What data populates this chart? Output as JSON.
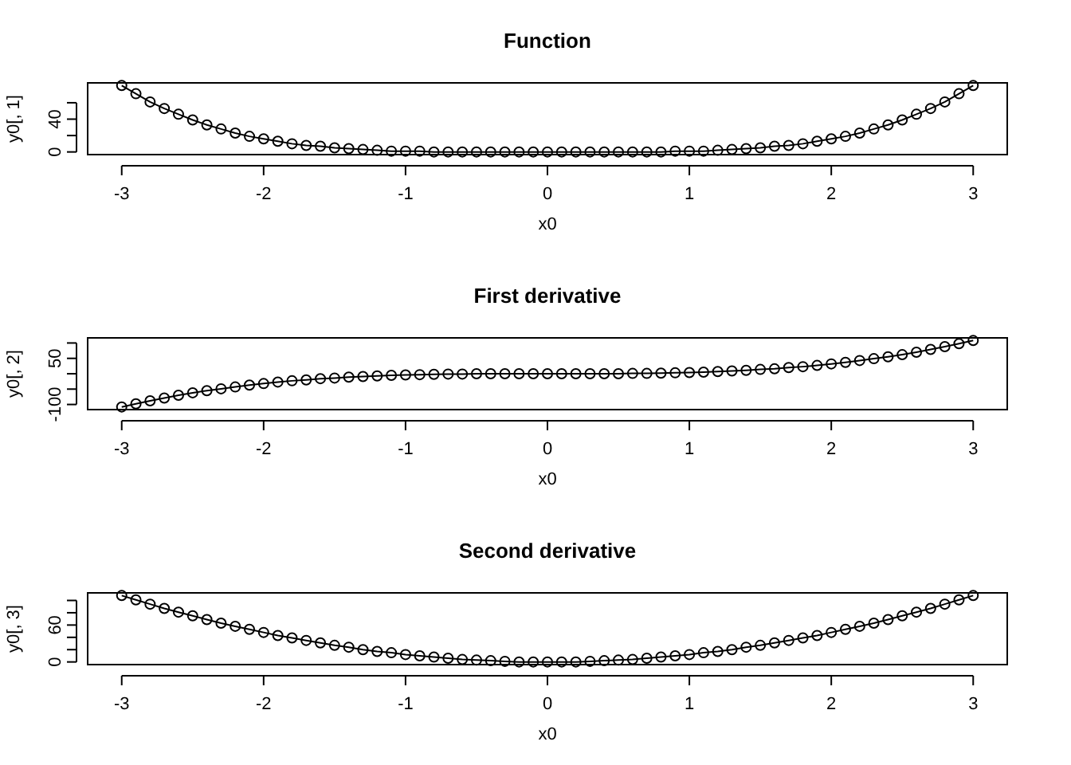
{
  "chart_data": [
    {
      "type": "line",
      "title": "Function",
      "xlabel": "x0",
      "ylabel": "y0[, 1]",
      "marker": "circle",
      "line_style": "solid",
      "xlim": [
        -3.24,
        3.24
      ],
      "xticks": [
        -3,
        -2,
        -1,
        0,
        1,
        2,
        3
      ],
      "ylim": [
        -3.24,
        84.24
      ],
      "yticks": [
        0,
        {
          "value": 20,
          "label": null
        },
        40,
        {
          "value": 60,
          "label": null
        }
      ],
      "x": [
        -3,
        -2.9,
        -2.8,
        -2.7,
        -2.6,
        -2.5,
        -2.4,
        -2.3,
        -2.2,
        -2.1,
        -2,
        -1.9,
        -1.8,
        -1.7,
        -1.6,
        -1.5,
        -1.4,
        -1.3,
        -1.2,
        -1.1,
        -1,
        -0.9,
        -0.8,
        -0.7,
        -0.6,
        -0.5,
        -0.4,
        -0.3,
        -0.2,
        -0.1,
        0,
        0.1,
        0.2,
        0.3,
        0.4,
        0.5,
        0.6,
        0.7,
        0.8,
        0.9,
        1,
        1.1,
        1.2,
        1.3,
        1.4,
        1.5,
        1.6,
        1.7,
        1.8,
        1.9,
        2,
        2.1,
        2.2,
        2.3,
        2.4,
        2.5,
        2.6,
        2.7,
        2.8,
        2.9,
        3
      ],
      "series": [
        {
          "color": "#000000",
          "values": [
            81,
            71,
            61,
            53,
            46,
            39,
            33,
            28,
            23,
            19,
            16,
            13,
            10,
            8,
            7,
            5,
            4,
            3,
            2,
            1,
            1,
            1,
            0,
            0,
            0,
            0,
            0,
            0,
            0,
            0,
            0,
            0,
            0,
            0,
            0,
            0,
            0,
            0,
            0,
            1,
            1,
            1,
            2,
            3,
            4,
            5,
            7,
            8,
            10,
            13,
            16,
            19,
            23,
            28,
            33,
            39,
            46,
            53,
            61,
            71,
            81
          ]
        }
      ]
    },
    {
      "type": "line",
      "title": "First derivative",
      "xlabel": "x0",
      "ylabel": "y0[, 2]",
      "marker": "circle",
      "line_style": "solid",
      "xlim": [
        -3.24,
        3.24
      ],
      "xticks": [
        -3,
        -2,
        -1,
        0,
        1,
        2,
        3
      ],
      "ylim": [
        -116.64,
        116.64
      ],
      "yticks": [
        -100,
        {
          "value": -50,
          "label": null
        },
        {
          "value": 0,
          "label": null
        },
        50,
        {
          "value": 100,
          "label": null
        }
      ],
      "x": [
        -3,
        -2.9,
        -2.8,
        -2.7,
        -2.6,
        -2.5,
        -2.4,
        -2.3,
        -2.2,
        -2.1,
        -2,
        -1.9,
        -1.8,
        -1.7,
        -1.6,
        -1.5,
        -1.4,
        -1.3,
        -1.2,
        -1.1,
        -1,
        -0.9,
        -0.8,
        -0.7,
        -0.6,
        -0.5,
        -0.4,
        -0.3,
        -0.2,
        -0.1,
        0,
        0.1,
        0.2,
        0.3,
        0.4,
        0.5,
        0.6,
        0.7,
        0.8,
        0.9,
        1,
        1.1,
        1.2,
        1.3,
        1.4,
        1.5,
        1.6,
        1.7,
        1.8,
        1.9,
        2,
        2.1,
        2.2,
        2.3,
        2.4,
        2.5,
        2.6,
        2.7,
        2.8,
        2.9,
        3
      ],
      "series": [
        {
          "color": "#000000",
          "values": [
            -108,
            -98,
            -88,
            -79,
            -70,
            -62,
            -55,
            -49,
            -43,
            -37,
            -32,
            -27,
            -23,
            -20,
            -16,
            -14,
            -11,
            -9,
            -7,
            -5,
            -4,
            -3,
            -2,
            -1,
            -1,
            0,
            0,
            0,
            0,
            0,
            0,
            0,
            0,
            0,
            0,
            0,
            1,
            1,
            2,
            3,
            4,
            5,
            7,
            9,
            11,
            14,
            16,
            20,
            23,
            27,
            32,
            37,
            43,
            49,
            55,
            62,
            70,
            79,
            88,
            98,
            108
          ]
        }
      ]
    },
    {
      "type": "line",
      "title": "Second derivative",
      "xlabel": "x0",
      "ylabel": "y0[, 3]",
      "marker": "circle",
      "line_style": "solid",
      "xlim": [
        -3.24,
        3.24
      ],
      "xticks": [
        -3,
        -2,
        -1,
        0,
        1,
        2,
        3
      ],
      "ylim": [
        -4.32,
        112.32
      ],
      "yticks": [
        0,
        {
          "value": 20,
          "label": null
        },
        {
          "value": 40,
          "label": null
        },
        60,
        {
          "value": 80,
          "label": null
        },
        {
          "value": 100,
          "label": null
        }
      ],
      "x": [
        -3,
        -2.9,
        -2.8,
        -2.7,
        -2.6,
        -2.5,
        -2.4,
        -2.3,
        -2.2,
        -2.1,
        -2,
        -1.9,
        -1.8,
        -1.7,
        -1.6,
        -1.5,
        -1.4,
        -1.3,
        -1.2,
        -1.1,
        -1,
        -0.9,
        -0.8,
        -0.7,
        -0.6,
        -0.5,
        -0.4,
        -0.3,
        -0.2,
        -0.1,
        0,
        0.1,
        0.2,
        0.3,
        0.4,
        0.5,
        0.6,
        0.7,
        0.8,
        0.9,
        1,
        1.1,
        1.2,
        1.3,
        1.4,
        1.5,
        1.6,
        1.7,
        1.8,
        1.9,
        2,
        2.1,
        2.2,
        2.3,
        2.4,
        2.5,
        2.6,
        2.7,
        2.8,
        2.9,
        3
      ],
      "series": [
        {
          "color": "#000000",
          "values": [
            108,
            101,
            94,
            87,
            81,
            75,
            69,
            63,
            58,
            53,
            48,
            43,
            39,
            35,
            31,
            27,
            24,
            20,
            17,
            15,
            12,
            10,
            8,
            6,
            4,
            3,
            2,
            1,
            0,
            0,
            0,
            0,
            0,
            1,
            2,
            3,
            4,
            6,
            8,
            10,
            12,
            15,
            17,
            20,
            24,
            27,
            31,
            35,
            39,
            43,
            48,
            53,
            58,
            63,
            69,
            75,
            81,
            87,
            94,
            101,
            108
          ]
        }
      ]
    }
  ]
}
